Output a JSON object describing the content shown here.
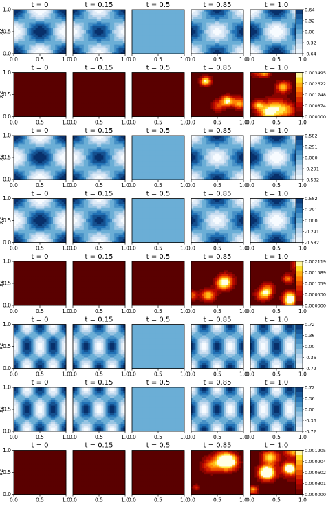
{
  "chart_data": {
    "type": "heatmap",
    "grid": "off",
    "layout": "8 rows x 5 columns of contour panels, one colorbar per row",
    "panel_titles": [
      "t = 0",
      "t = 0.15",
      "t = 0.5",
      "t = 0.85",
      "t = 1.0"
    ],
    "ylabel": "x2",
    "xlim": [
      0.0,
      1.0
    ],
    "ylim": [
      0.0,
      1.0
    ],
    "x_ticks": [
      "0.0",
      "0.5",
      "1.0"
    ],
    "y_ticks": [
      "0.0",
      "0.5",
      "1.0"
    ],
    "rows": [
      {
        "cmap": "Blues",
        "field": "cos",
        "kx": 1,
        "ky": 1,
        "amp": 0.64,
        "colorbar_ticks": [
          "0.64",
          "0.32",
          "0.00",
          "-0.32",
          "-0.64"
        ]
      },
      {
        "cmap": "hot",
        "field": "error",
        "seed": 11,
        "vmax": 0.003495,
        "colorbar_ticks": [
          "0.003495",
          "0.002622",
          "0.001748",
          "0.000874",
          "0.000000"
        ]
      },
      {
        "cmap": "Blues",
        "field": "cos",
        "kx": 1,
        "ky": 1,
        "amp": 0.582,
        "colorbar_ticks": [
          "0.582",
          "0.291",
          "0.000",
          "-0.291",
          "-0.582"
        ]
      },
      {
        "cmap": "Blues",
        "field": "cos",
        "kx": 1,
        "ky": 1,
        "amp": 0.582,
        "colorbar_ticks": [
          "0.582",
          "0.291",
          "0.000",
          "-0.291",
          "-0.582"
        ]
      },
      {
        "cmap": "hot",
        "field": "error",
        "seed": 29,
        "vmax": 0.002119,
        "colorbar_ticks": [
          "0.002119",
          "0.001589",
          "0.001059",
          "0.000530",
          "0.000000"
        ]
      },
      {
        "cmap": "Blues",
        "field": "cos",
        "kx": 2,
        "ky": 1,
        "amp": 0.72,
        "colorbar_ticks": [
          "0.72",
          "0.36",
          "0.00",
          "-0.36",
          "-0.72"
        ]
      },
      {
        "cmap": "Blues",
        "field": "cos",
        "kx": 2,
        "ky": 1,
        "amp": 0.72,
        "colorbar_ticks": [
          "0.72",
          "0.36",
          "0.00",
          "-0.36",
          "-0.72"
        ]
      },
      {
        "cmap": "hot",
        "field": "error",
        "seed": 47,
        "vmax": 0.001205,
        "colorbar_ticks": [
          "0.001205",
          "0.000904",
          "0.000602",
          "0.000301",
          "0.000000"
        ]
      }
    ],
    "time_values": [
      0,
      0.15,
      0.5,
      0.85,
      1.0
    ]
  }
}
